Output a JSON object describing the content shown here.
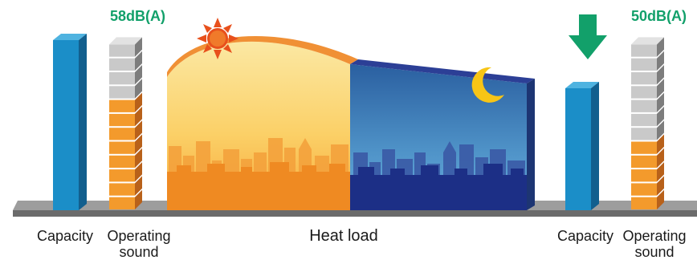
{
  "left": {
    "sound_level": "58dB(A)",
    "capacity_label": "Capacity",
    "sound_label_line1": "Operating",
    "sound_label_line2": "sound",
    "sound_stack": {
      "total_blocks": 12,
      "orange_blocks": 8
    }
  },
  "center": {
    "label": "Heat load"
  },
  "right": {
    "sound_level": "50dB(A)",
    "capacity_label": "Capacity",
    "sound_label_line1": "Operating",
    "sound_label_line2": "sound",
    "sound_stack": {
      "total_blocks": 12,
      "orange_blocks": 5
    }
  },
  "icons": [
    "sun-icon",
    "moon-icon",
    "down-arrow-icon"
  ],
  "colors": {
    "capacity_blue": "#1b8ec8",
    "sound_orange": "#f39a2c",
    "sound_gray": "#c9c9c9",
    "day_yellow": "#fbd56d",
    "night_blue": "#2f6fb0",
    "arrow_green": "#12a06a",
    "label_green": "#12a06a"
  }
}
